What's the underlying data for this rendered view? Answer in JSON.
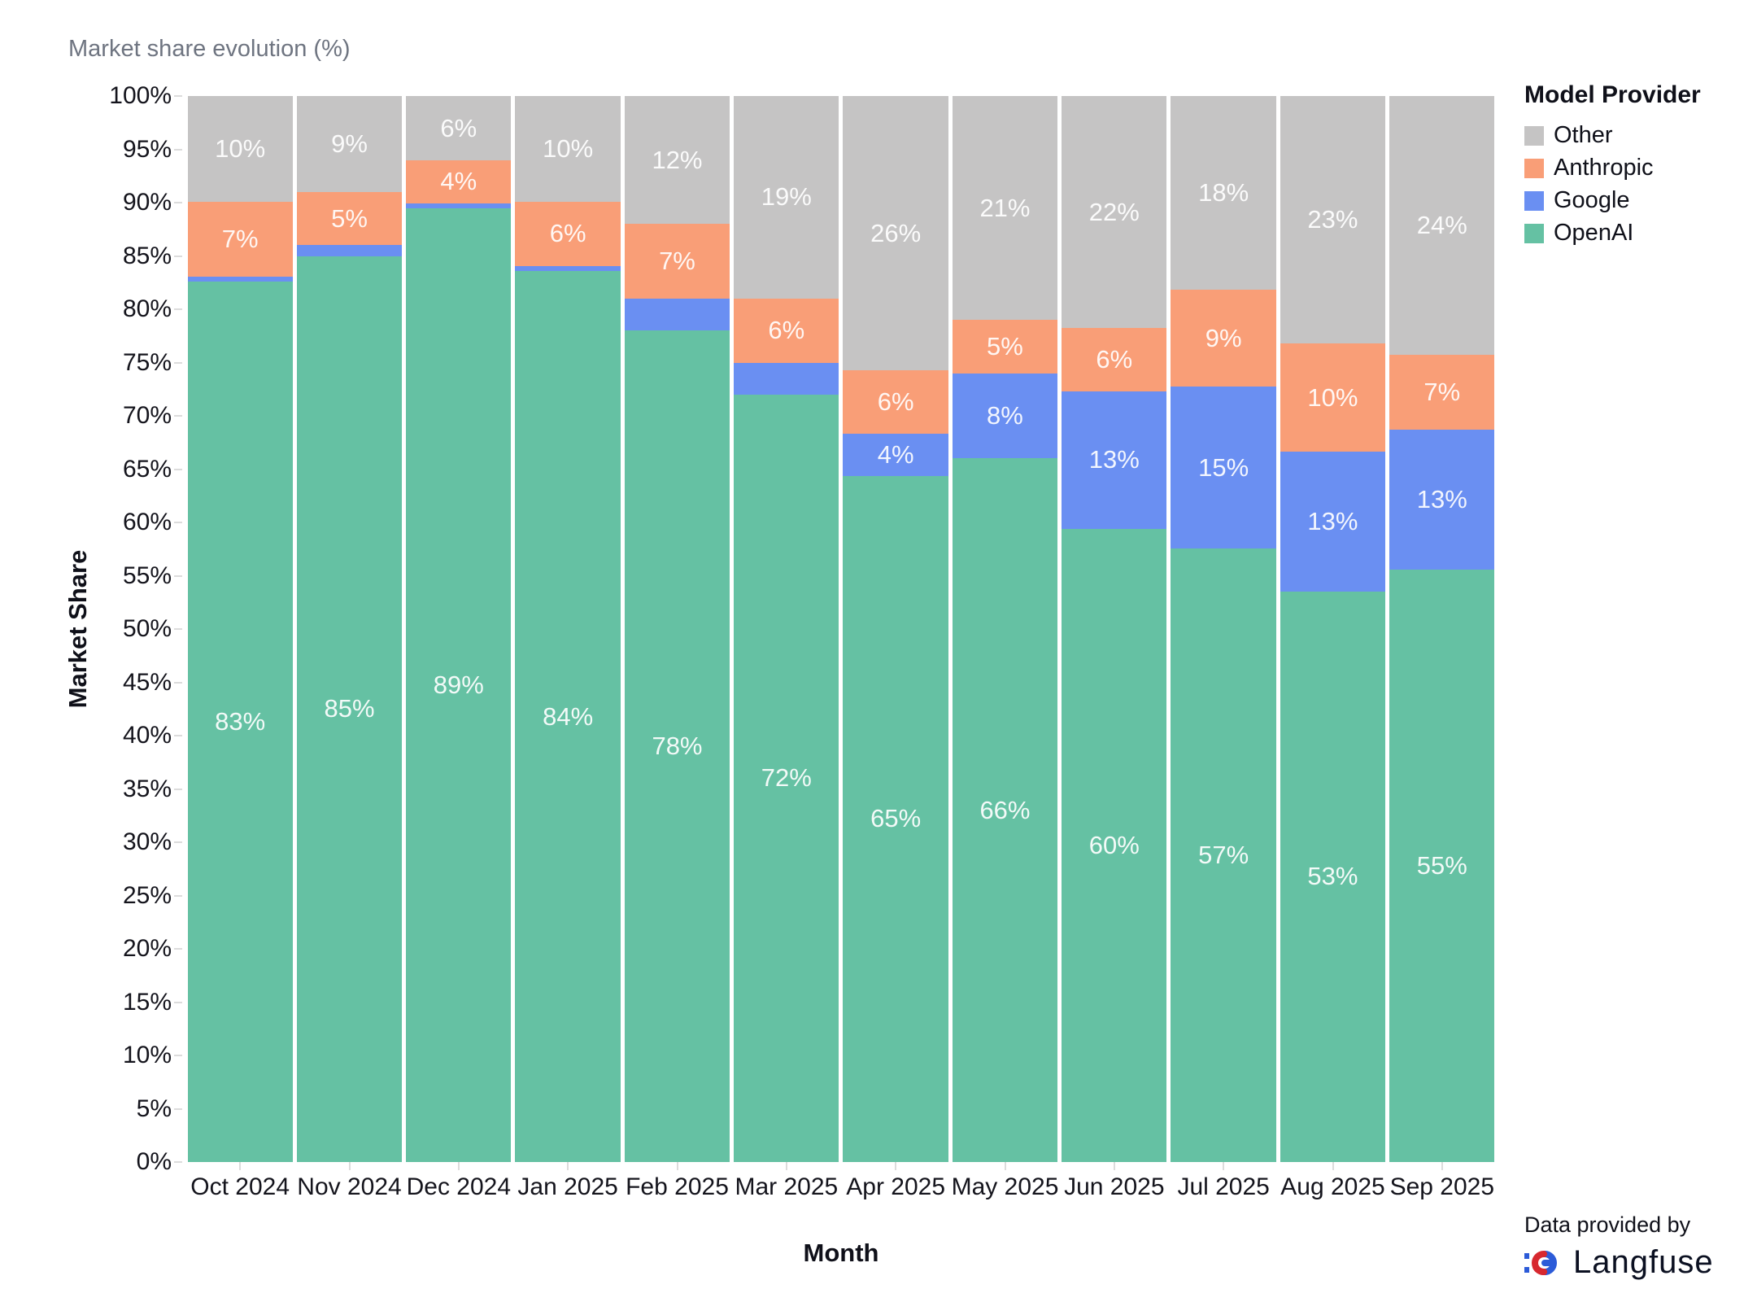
{
  "title": "Market share evolution (%)",
  "axes": {
    "y_label": "Market Share",
    "x_label": "Month",
    "y_ticks": [
      "0%",
      "5%",
      "10%",
      "15%",
      "20%",
      "25%",
      "30%",
      "35%",
      "40%",
      "45%",
      "50%",
      "55%",
      "60%",
      "65%",
      "70%",
      "75%",
      "80%",
      "85%",
      "90%",
      "95%",
      "100%"
    ]
  },
  "legend": {
    "title": "Model Provider",
    "items": [
      {
        "label": "Other",
        "color": "#c5c4c4"
      },
      {
        "label": "Anthropic",
        "color": "#f99e77"
      },
      {
        "label": "Google",
        "color": "#6a8ff2"
      },
      {
        "label": "OpenAI",
        "color": "#65c1a3"
      }
    ]
  },
  "footer": {
    "provided_by": "Data provided by",
    "brand": "Langfuse"
  },
  "chart_data": {
    "type": "bar",
    "stacked": true,
    "title": "Market share evolution (%)",
    "xlabel": "Month",
    "ylabel": "Market Share",
    "ylim": [
      0,
      100
    ],
    "grid": false,
    "legend_position": "right",
    "categories": [
      "Oct 2024",
      "Nov 2024",
      "Dec 2024",
      "Jan 2025",
      "Feb 2025",
      "Mar 2025",
      "Apr 2025",
      "May 2025",
      "Jun 2025",
      "Jul 2025",
      "Aug 2025",
      "Sep 2025"
    ],
    "series": [
      {
        "name": "OpenAI",
        "color": "#65c1a3",
        "values": [
          83,
          85,
          89,
          84,
          78,
          72,
          65,
          66,
          60,
          57,
          53,
          55
        ],
        "labels": [
          "83%",
          "85%",
          "89%",
          "84%",
          "78%",
          "72%",
          "65%",
          "66%",
          "60%",
          "57%",
          "53%",
          "55%"
        ]
      },
      {
        "name": "Google",
        "color": "#6a8ff2",
        "values": [
          0.5,
          1,
          0.5,
          0.5,
          3,
          3,
          4,
          8,
          13,
          15,
          13,
          13
        ],
        "labels": [
          "",
          "",
          "",
          "",
          "",
          "",
          "4%",
          "8%",
          "13%",
          "15%",
          "13%",
          "13%"
        ]
      },
      {
        "name": "Anthropic",
        "color": "#f99e77",
        "values": [
          7,
          5,
          4,
          6,
          7,
          6,
          6,
          5,
          6,
          9,
          10,
          7
        ],
        "labels": [
          "7%",
          "5%",
          "4%",
          "6%",
          "7%",
          "6%",
          "6%",
          "5%",
          "6%",
          "9%",
          "10%",
          "7%"
        ]
      },
      {
        "name": "Other",
        "color": "#c5c4c4",
        "values": [
          10,
          9,
          6,
          10,
          12,
          19,
          26,
          21,
          22,
          18,
          23,
          24
        ],
        "labels": [
          "10%",
          "9%",
          "6%",
          "10%",
          "12%",
          "19%",
          "26%",
          "21%",
          "22%",
          "18%",
          "23%",
          "24%"
        ]
      }
    ]
  }
}
